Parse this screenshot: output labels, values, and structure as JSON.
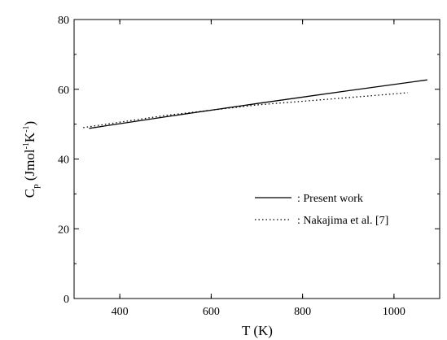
{
  "chart_data": {
    "type": "line",
    "xlabel": "T (K)",
    "ylabel": {
      "main": "C",
      "sub": "p",
      "unit_open": " (Jmol",
      "exp1": "-1",
      "unit_mid": "K",
      "exp2": "-1",
      "unit_close": ")"
    },
    "xlim": [
      300,
      1100
    ],
    "ylim": [
      0,
      80
    ],
    "xticks": [
      400,
      600,
      800,
      1000
    ],
    "xtick_labels": [
      "400",
      "600",
      "800",
      "1000"
    ],
    "yticks": [
      0,
      20,
      40,
      60,
      80
    ],
    "ytick_labels": [
      "0",
      "20",
      "40",
      "60",
      "80"
    ],
    "grid": false,
    "legend_position": "center-right",
    "series": [
      {
        "name": ": Present work",
        "style": "solid",
        "color": "#000000",
        "x": [
          333,
          500,
          700,
          900,
          1073
        ],
        "y": [
          48.8,
          52.1,
          55.9,
          59.6,
          62.7
        ]
      },
      {
        "name": ": Nakajima et al. [7]",
        "style": "dotted",
        "color": "#000000",
        "x": [
          320,
          500,
          700,
          900,
          1030
        ],
        "y": [
          49.0,
          52.5,
          55.5,
          57.6,
          59.0
        ]
      }
    ]
  }
}
